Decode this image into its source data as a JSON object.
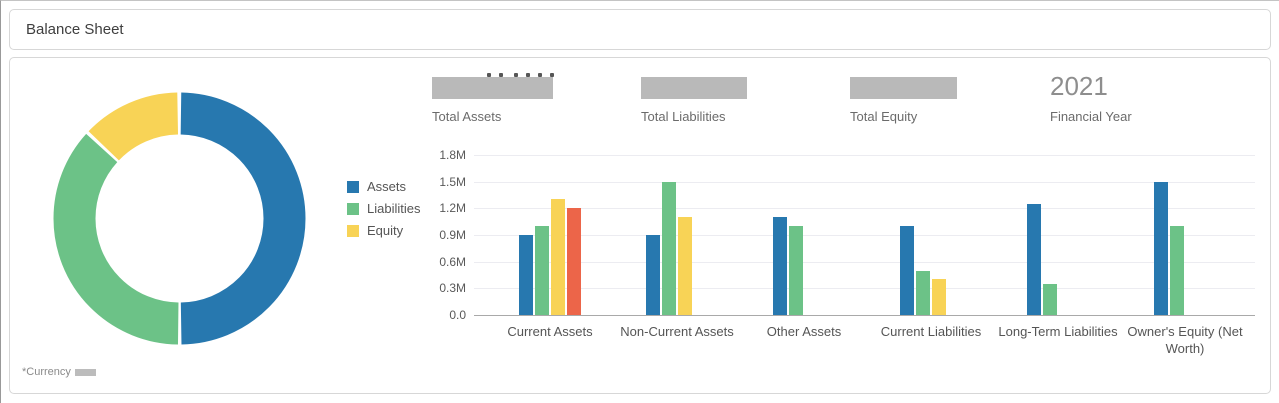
{
  "header": {
    "title": "Balance Sheet"
  },
  "theme": {
    "assets_blue": "#2778af",
    "liabilities_green": "#6cc287",
    "equity_yellow": "#f8d356",
    "extra_red": "#ec6549",
    "redaction_gray": "#b9b9b9",
    "gridline": "#ececf1",
    "axis_line": "#a9a9a9"
  },
  "kpis": [
    {
      "label": "Total Assets",
      "value_redacted": true
    },
    {
      "label": "Total Liabilities",
      "value_redacted": true
    },
    {
      "label": "Total Equity",
      "value_redacted": true
    },
    {
      "label": "Financial Year",
      "value": "2021"
    }
  ],
  "legend": {
    "items": [
      {
        "label": "Assets",
        "color": "#2778af"
      },
      {
        "label": "Liabilities",
        "color": "#6cc287"
      },
      {
        "label": "Equity",
        "color": "#f8d356"
      }
    ]
  },
  "footnote": {
    "text": "*Currency",
    "value_redacted": true
  },
  "chart_data": [
    {
      "type": "pie",
      "subtype": "donut",
      "legend_position": "right",
      "series": [
        {
          "name": "Assets",
          "pct": 50,
          "color": "#2778af"
        },
        {
          "name": "Liabilities",
          "pct": 37,
          "color": "#6cc287"
        },
        {
          "name": "Equity",
          "pct": 13,
          "color": "#f8d356"
        }
      ]
    },
    {
      "type": "bar",
      "title": "",
      "xlabel": "",
      "ylabel": "",
      "unit": "M",
      "ylim": [
        0,
        1.8
      ],
      "ytick_step": 0.3,
      "ytick_labels": [
        "0.0",
        "0.3M",
        "0.6M",
        "0.9M",
        "1.2M",
        "1.5M",
        "1.8M"
      ],
      "grid": true,
      "categories": [
        "Current Assets",
        "Non-Current Assets",
        "Other Assets",
        "Current Liabilities",
        "Long-Term Liabilities",
        "Owner's Equity (Net Worth)"
      ],
      "series": [
        {
          "name": "Assets",
          "color": "#2778af",
          "values": [
            0.9,
            0.9,
            1.1,
            1.0,
            1.25,
            1.5
          ]
        },
        {
          "name": "Liabilities",
          "color": "#6cc287",
          "values": [
            1.0,
            1.5,
            1.0,
            0.5,
            0.35,
            1.0
          ]
        },
        {
          "name": "Equity",
          "color": "#f8d356",
          "values": [
            1.3,
            1.1,
            null,
            0.4,
            null,
            null
          ]
        },
        {
          "name": "",
          "color": "#ec6549",
          "values": [
            1.2,
            null,
            null,
            null,
            null,
            null
          ]
        }
      ]
    }
  ]
}
